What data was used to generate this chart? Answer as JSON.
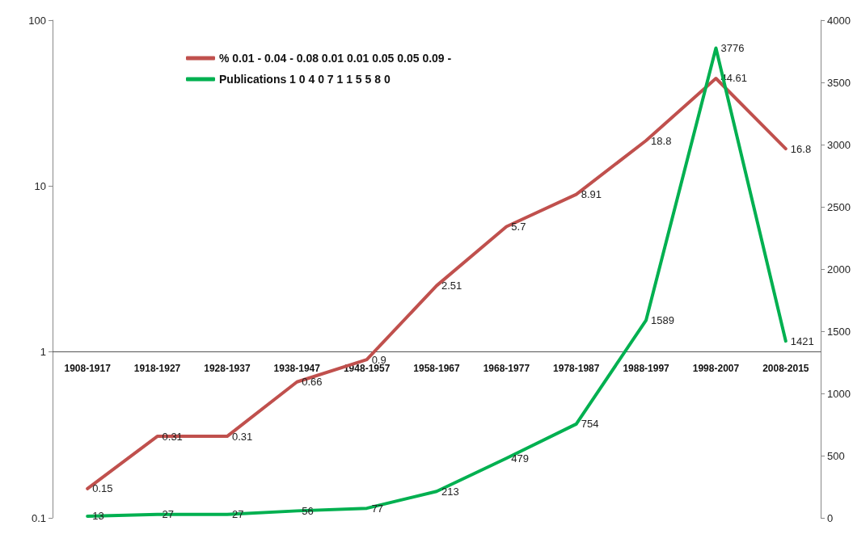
{
  "chart_data": {
    "type": "line",
    "categories": [
      "1908-1917",
      "1918-1927",
      "1928-1937",
      "1938-1947",
      "1948-1957",
      "1958-1967",
      "1968-1977",
      "1978-1987",
      "1988-1997",
      "1998-2007",
      "2008-2015"
    ],
    "series": [
      {
        "name": "% 0.01 - 0.04 - 0.08 0.01 0.01 0.05 0.05 0.09 -",
        "color": "#c0504d",
        "values": [
          0.15,
          0.31,
          0.31,
          0.66,
          0.9,
          2.51,
          5.7,
          8.91,
          18.8,
          44.61,
          16.8
        ]
      },
      {
        "name": "Publications 1 0 4 0 7 1 1 5 5 8 0",
        "color": "#00b050",
        "axis": "y2",
        "values": [
          13,
          27,
          27,
          56,
          77,
          213,
          479,
          754,
          1589,
          3776,
          1421
        ]
      }
    ],
    "log": "y",
    "ylim": [
      0.1,
      100
    ],
    "yticks": [
      0.1,
      1,
      10,
      100
    ],
    "y2lim": [
      0,
      4000
    ],
    "y2ticks": [
      0,
      500,
      1000,
      1500,
      2000,
      2500,
      3000,
      3500,
      4000
    ],
    "data_labels": true,
    "grid": false,
    "legend": "top left",
    "marker": "none",
    "line_style": "solid"
  }
}
